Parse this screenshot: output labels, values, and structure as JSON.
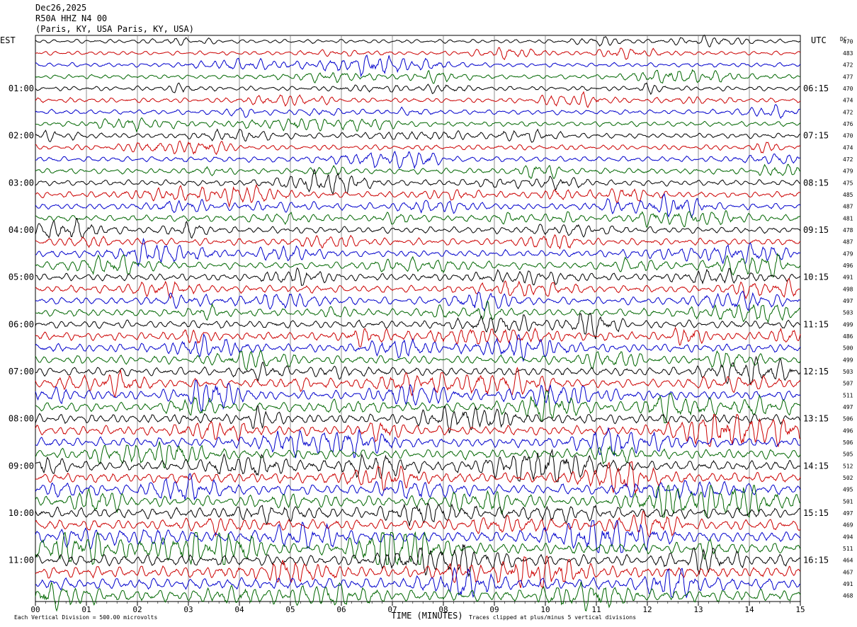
{
  "header": {
    "date": "Dec26,2025",
    "station": "R50A HHZ N4 00",
    "location": "(Paris, KY, USA Paris, KY, USA)"
  },
  "chart_data": {
    "type": "line",
    "title": "",
    "xlabel": "TIME (MINUTES)",
    "x_ticks": [
      "00",
      "01",
      "02",
      "03",
      "04",
      "05",
      "06",
      "07",
      "08",
      "09",
      "10",
      "11",
      "12",
      "13",
      "14",
      "15"
    ],
    "xlim": [
      0,
      15
    ],
    "left_axis_label": "EST",
    "right_axis_label": "UTC",
    "dc_label": "DC",
    "left_hour_labels": [
      "01:00",
      "02:00",
      "03:00",
      "04:00",
      "05:00",
      "06:00",
      "07:00",
      "08:00",
      "09:00",
      "10:00",
      "11:00"
    ],
    "right_hour_labels": [
      "06:15",
      "07:15",
      "08:15",
      "09:15",
      "10:15",
      "11:15",
      "12:15",
      "13:15",
      "14:15",
      "15:15",
      "16:15"
    ],
    "dc_offsets": [
      470,
      483,
      472,
      477,
      470,
      474,
      472,
      476,
      470,
      474,
      472,
      479,
      475,
      485,
      487,
      481,
      478,
      487,
      479,
      496,
      491,
      498,
      497,
      503,
      499,
      486,
      500,
      499,
      503,
      507,
      511,
      497,
      506,
      496,
      506,
      505,
      512,
      502,
      495,
      501,
      497,
      469,
      494,
      511,
      464,
      467,
      491,
      468
    ],
    "trace_colors": [
      "#000000",
      "#cc0000",
      "#0000cc",
      "#006600"
    ],
    "grid": "vertical lines at each minute",
    "footer_left": "Each Vertical Division = 500.00 microvolts",
    "footer_right": "Traces clipped at plus/minus 5 vertical divisions"
  }
}
